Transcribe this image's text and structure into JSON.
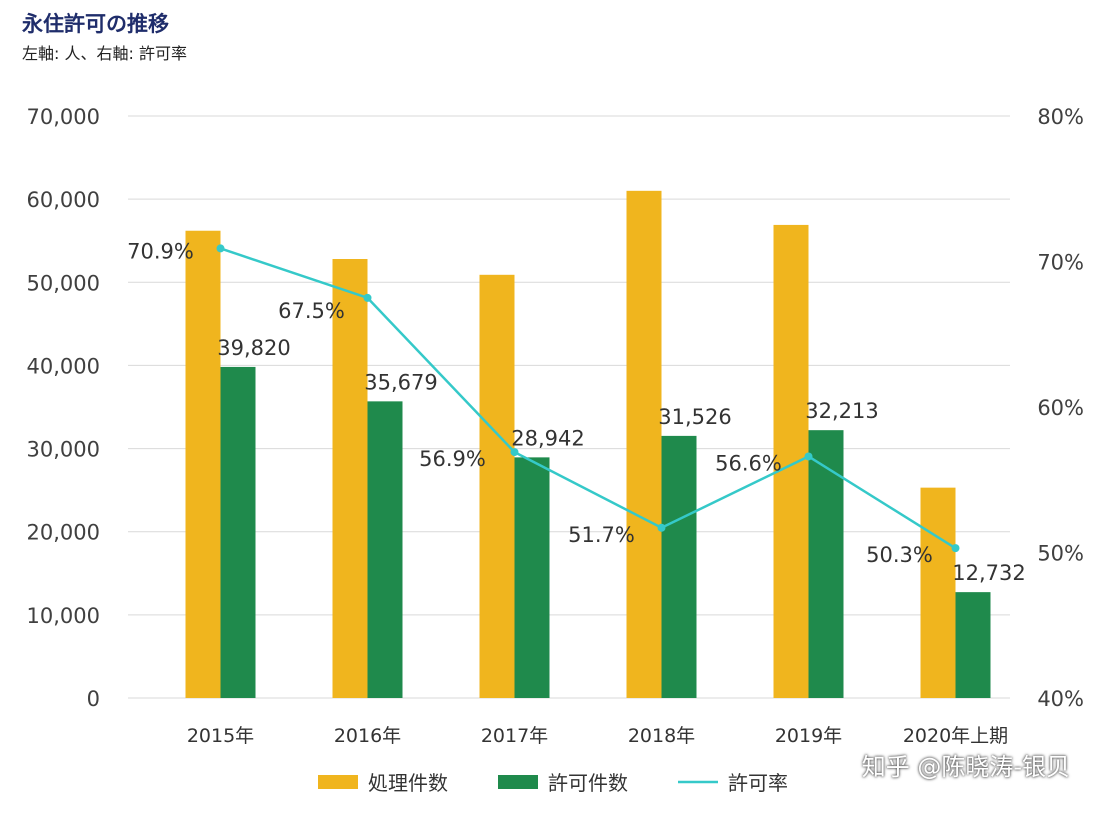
{
  "title": "永住許可の推移",
  "subtitle": "左軸: 人、右軸: 許可率",
  "watermark": "知乎 @陈晓涛-银贝",
  "chart_data": {
    "type": "bar",
    "categories": [
      "2015年",
      "2016年",
      "2017年",
      "2018年",
      "2019年",
      "2020年上期"
    ],
    "series": [
      {
        "name": "処理件数",
        "kind": "bar",
        "axis": "left",
        "color": "#f0b51e",
        "values": [
          56200,
          52800,
          50900,
          61000,
          56900,
          25300
        ],
        "labels": []
      },
      {
        "name": "許可件数",
        "kind": "bar",
        "axis": "left",
        "color": "#1f8a4c",
        "values": [
          39820,
          35679,
          28942,
          31526,
          32213,
          12732
        ],
        "labels": [
          "39,820",
          "35,679",
          "28,942",
          "31,526",
          "32,213",
          "12,732"
        ]
      },
      {
        "name": "許可率",
        "kind": "line",
        "axis": "right",
        "color": "#35c9c9",
        "values": [
          70.9,
          67.5,
          56.9,
          51.7,
          56.6,
          50.3
        ],
        "labels": [
          "70.9%",
          "67.5%",
          "56.9%",
          "51.7%",
          "56.6%",
          "50.3%"
        ],
        "label_colors": [
          "#333333",
          "#333333",
          "#333333",
          "#111111",
          "#333333",
          "#e0262f"
        ]
      }
    ],
    "yleft": {
      "min": 0,
      "max": 70000,
      "step": 10000,
      "tick_labels": [
        "0",
        "10,000",
        "20,000",
        "30,000",
        "40,000",
        "50,000",
        "60,000",
        "70,000"
      ]
    },
    "yright": {
      "min": 40,
      "max": 80,
      "step": 10,
      "tick_labels": [
        "40%",
        "50%",
        "60%",
        "70%",
        "80%"
      ]
    },
    "grid": true,
    "legend": "bottom"
  }
}
